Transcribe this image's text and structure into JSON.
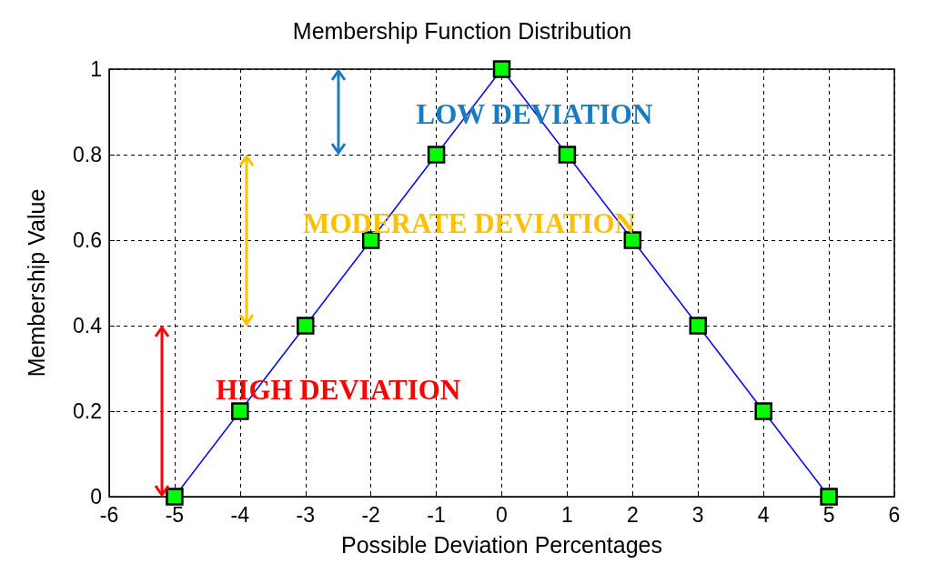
{
  "chart_data": {
    "type": "line",
    "title": "Membership Function Distribution",
    "xlabel": "Possible Deviation Percentages",
    "ylabel": "Membership Value",
    "x": [
      -5,
      -4,
      -3,
      -2,
      -1,
      0,
      1,
      2,
      3,
      4,
      5
    ],
    "series": [
      {
        "color": "#0000ff",
        "values": [
          0,
          0.2,
          0.4,
          0.6,
          0.8,
          1,
          0.8,
          0.6,
          0.4,
          0.2,
          0
        ]
      }
    ],
    "marker": "square",
    "line_style": "solid",
    "grid": true,
    "xlim": [
      -6,
      6
    ],
    "xticks": [
      -6,
      -5,
      -4,
      -3,
      -2,
      -1,
      0,
      1,
      2,
      3,
      4,
      5,
      6
    ],
    "ylim": [
      0,
      1
    ],
    "yticks": [
      0,
      0.2,
      0.4,
      0.6,
      0.8,
      1
    ],
    "annotations": [
      "LOW DEVIATION",
      "MODERATE DEVIATION",
      "HIGH DEVIATION"
    ]
  }
}
